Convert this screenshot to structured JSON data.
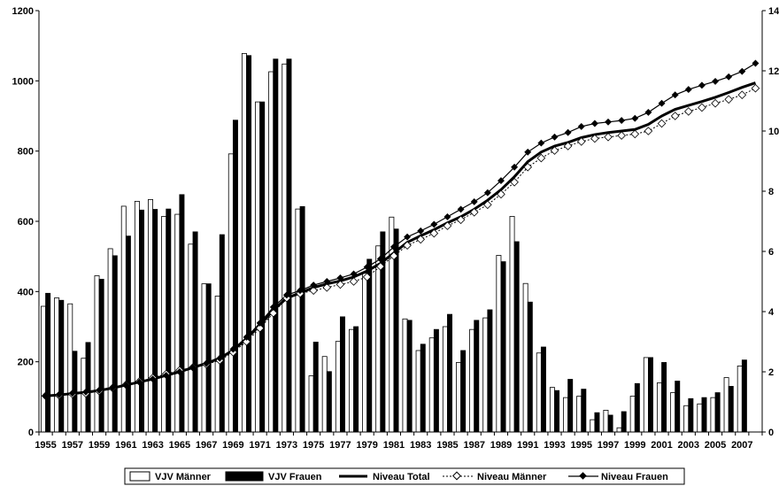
{
  "chart_data": {
    "type": "bar",
    "x": [
      1955,
      1956,
      1957,
      1958,
      1959,
      1960,
      1961,
      1962,
      1963,
      1964,
      1965,
      1966,
      1967,
      1968,
      1969,
      1970,
      1971,
      1972,
      1973,
      1974,
      1975,
      1976,
      1977,
      1978,
      1979,
      1980,
      1981,
      1982,
      1983,
      1984,
      1985,
      1986,
      1987,
      1988,
      1989,
      1990,
      1991,
      1992,
      1993,
      1994,
      1995,
      1996,
      1997,
      1998,
      1999,
      2000,
      2001,
      2002,
      2003,
      2004,
      2005,
      2006,
      2007,
      2008
    ],
    "x_tick_labels": [
      "1955",
      "1957",
      "1959",
      "1961",
      "1963",
      "1965",
      "1967",
      "1969",
      "1971",
      "1973",
      "1975",
      "1977",
      "1979",
      "1981",
      "1983",
      "1985",
      "1987",
      "1989",
      "1991",
      "1993",
      "1995",
      "1997",
      "1999",
      "2001",
      "2003",
      "2005",
      "2007"
    ],
    "left_axis": {
      "ylim": [
        0,
        1200
      ],
      "ticks": [
        "0",
        "200",
        "400",
        "600",
        "800",
        "1000",
        "1200"
      ]
    },
    "right_axis": {
      "ylim": [
        0,
        14
      ],
      "ticks": [
        "0",
        "2",
        "4",
        "6",
        "8",
        "10",
        "12",
        "14"
      ]
    },
    "series": [
      {
        "name": "VJV Männer",
        "kind": "bar",
        "axis": "left",
        "color": "#ffffff",
        "values": [
          358,
          382,
          365,
          210,
          445,
          522,
          643,
          657,
          662,
          614,
          620,
          535,
          422,
          387,
          792,
          1078,
          940,
          1026,
          1048,
          635,
          160,
          215,
          258,
          292,
          452,
          530,
          612,
          322,
          232,
          268,
          300,
          198,
          292,
          325,
          503,
          614,
          423,
          225,
          127,
          98,
          102,
          35,
          62,
          12,
          102,
          212,
          140,
          112,
          75,
          80,
          98,
          155,
          188,
          0
        ]
      },
      {
        "name": "VJV Frauen",
        "kind": "bar",
        "axis": "left",
        "color": "#000000",
        "values": [
          395,
          375,
          230,
          255,
          435,
          502,
          558,
          632,
          634,
          635,
          676,
          570,
          422,
          562,
          888,
          1072,
          940,
          1062,
          1062,
          642,
          256,
          172,
          328,
          300,
          492,
          570,
          578,
          318,
          250,
          292,
          335,
          232,
          318,
          348,
          485,
          542,
          370,
          242,
          118,
          150,
          122,
          55,
          48,
          58,
          138,
          212,
          198,
          145,
          95,
          98,
          112,
          130,
          205,
          0
        ]
      },
      {
        "name": "Niveau Total",
        "kind": "line",
        "axis": "right",
        "color": "#000000",
        "values": [
          1.2,
          1.23,
          1.28,
          1.32,
          1.38,
          1.46,
          1.56,
          1.66,
          1.76,
          1.88,
          2.0,
          2.14,
          2.28,
          2.45,
          2.72,
          3.1,
          3.55,
          4.05,
          4.45,
          4.62,
          4.8,
          4.92,
          5.02,
          5.15,
          5.35,
          5.6,
          5.95,
          6.3,
          6.52,
          6.72,
          6.95,
          7.15,
          7.4,
          7.7,
          8.05,
          8.48,
          8.98,
          9.3,
          9.5,
          9.62,
          9.78,
          9.88,
          9.95,
          10.0,
          10.05,
          10.22,
          10.5,
          10.72,
          10.85,
          10.98,
          11.12,
          11.28,
          11.45,
          11.6
        ]
      },
      {
        "name": "Niveau Männer",
        "kind": "line",
        "axis": "right",
        "color": "#000000",
        "values": [
          1.2,
          1.22,
          1.26,
          1.28,
          1.36,
          1.46,
          1.57,
          1.68,
          1.8,
          1.93,
          2.05,
          2.15,
          2.25,
          2.38,
          2.65,
          3.0,
          3.45,
          3.95,
          4.45,
          4.6,
          4.7,
          4.8,
          4.9,
          5.0,
          5.15,
          5.5,
          5.85,
          6.2,
          6.4,
          6.6,
          6.85,
          7.05,
          7.3,
          7.55,
          7.9,
          8.3,
          8.8,
          9.1,
          9.35,
          9.5,
          9.65,
          9.75,
          9.8,
          9.85,
          9.9,
          10.0,
          10.25,
          10.5,
          10.65,
          10.78,
          10.92,
          11.05,
          11.2,
          11.42
        ]
      },
      {
        "name": "Niveau Frauen",
        "kind": "line",
        "axis": "right",
        "color": "#000000",
        "values": [
          1.2,
          1.24,
          1.29,
          1.33,
          1.39,
          1.47,
          1.56,
          1.66,
          1.76,
          1.88,
          2.0,
          2.14,
          2.28,
          2.45,
          2.75,
          3.15,
          3.62,
          4.15,
          4.55,
          4.7,
          4.88,
          5.0,
          5.12,
          5.25,
          5.48,
          5.75,
          6.15,
          6.48,
          6.68,
          6.9,
          7.15,
          7.4,
          7.65,
          7.95,
          8.35,
          8.8,
          9.3,
          9.6,
          9.8,
          9.95,
          10.15,
          10.25,
          10.3,
          10.35,
          10.42,
          10.62,
          10.92,
          11.2,
          11.38,
          11.52,
          11.65,
          11.8,
          11.98,
          12.25
        ]
      }
    ],
    "legend_position": "bottom",
    "grid": false
  }
}
